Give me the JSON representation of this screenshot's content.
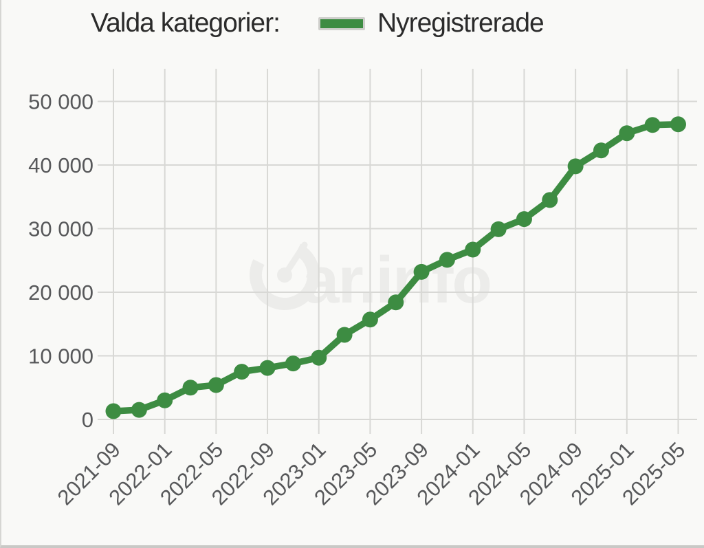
{
  "page": {
    "background": "#f9f9f7",
    "left_border_color": "#d6d6d3",
    "bottom_border_color": "#c9c9c6"
  },
  "header": {
    "title": "Valda kategorier:",
    "legend": {
      "label": "Nyregistrerade",
      "swatch_color": "#3d8c42",
      "swatch_border": "#cfcfcc"
    }
  },
  "watermark": {
    "text": "ar.info",
    "logo": "car.info gauge logo",
    "color": "#ececea"
  },
  "colors": {
    "series": "#3d8c42",
    "grid": "#d8d8d5",
    "axis_text": "#57585a",
    "title_text": "#2b2b2b"
  },
  "chart_data": {
    "type": "line",
    "title": "Valda kategorier:",
    "legend_position": "top",
    "grid": true,
    "marker": "circle",
    "xlabel": "",
    "ylabel": "",
    "ylim": [
      0,
      50000
    ],
    "x": [
      "2021-09",
      "2021-11",
      "2022-01",
      "2022-03",
      "2022-05",
      "2022-07",
      "2022-09",
      "2022-11",
      "2023-01",
      "2023-03",
      "2023-05",
      "2023-07",
      "2023-09",
      "2023-11",
      "2024-01",
      "2024-03",
      "2024-05",
      "2024-07",
      "2024-09",
      "2024-11",
      "2025-01",
      "2025-03",
      "2025-05"
    ],
    "series": [
      {
        "name": "Nyregistrerade",
        "color": "#3d8c42",
        "values": [
          1300,
          1500,
          3000,
          5000,
          5400,
          7500,
          8100,
          8800,
          9700,
          13300,
          15700,
          18400,
          23200,
          25100,
          26700,
          29900,
          31500,
          34500,
          39800,
          42300,
          45000,
          46300,
          46400
        ]
      }
    ],
    "x_tick_labels": [
      "2021-09",
      "2022-01",
      "2022-05",
      "2022-09",
      "2023-01",
      "2023-05",
      "2023-09",
      "2024-01",
      "2024-05",
      "2024-09",
      "2025-01",
      "2025-05"
    ],
    "y_ticks": [
      0,
      10000,
      20000,
      30000,
      40000,
      50000
    ],
    "y_tick_labels": [
      "0",
      "10 000",
      "20 000",
      "30 000",
      "40 000",
      "50 000"
    ]
  }
}
